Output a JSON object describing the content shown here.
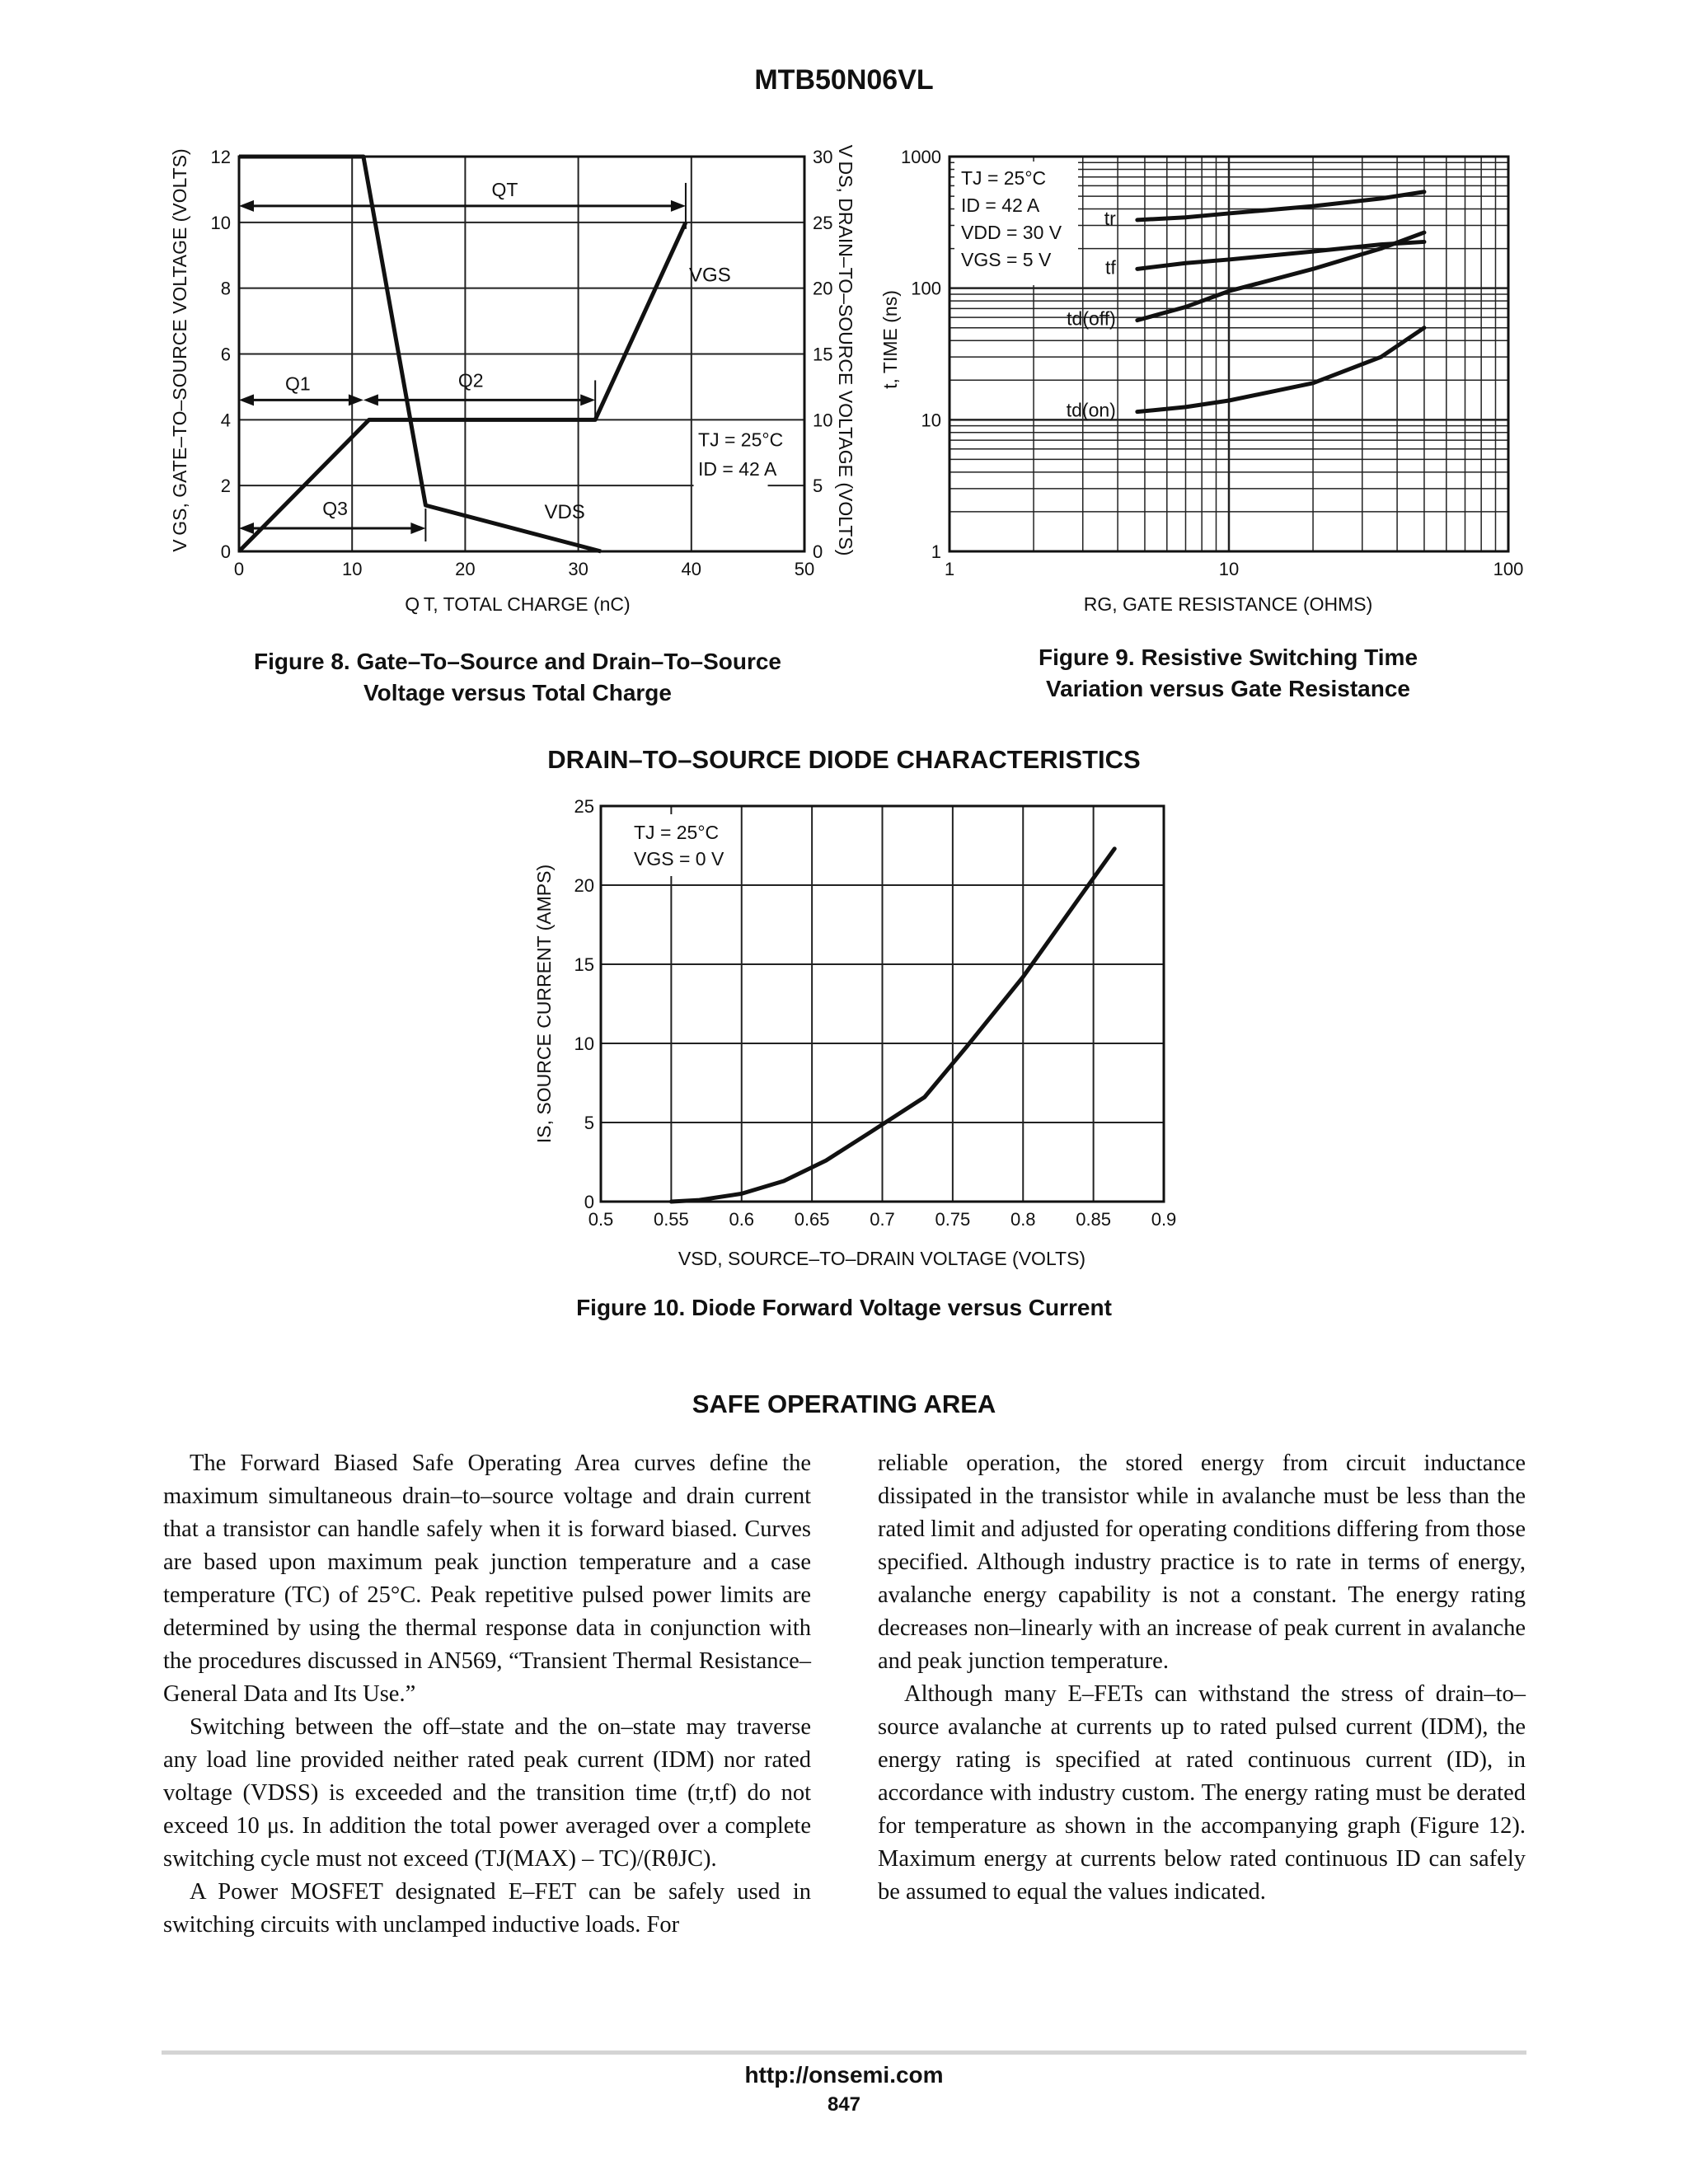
{
  "header": {
    "title": "MTB50N06VL"
  },
  "charts": {
    "fig8": {
      "y_left_label": "V GS, GATE–TO–SOURCE VOLTAGE (VOLTS)",
      "y_right_label": "V DS, DRAIN–TO–SOURCE VOLTAGE (VOLTS)",
      "x_label": "Q T, TOTAL CHARGE (nC)",
      "labels": {
        "qt": "QT",
        "q1": "Q1",
        "q2": "Q2",
        "q3": "Q3",
        "vgs": "VGS",
        "vds": "VDS",
        "tj": "TJ = 25°C",
        "id": "ID = 42 A"
      },
      "caption_line1": "Figure 8. Gate–To–Source and Drain–To–Source",
      "caption_line2": "Voltage versus Total Charge"
    },
    "fig9": {
      "y_label": "t, TIME (ns)",
      "x_label": "RG, GATE RESISTANCE (OHMS)",
      "conditions": [
        "TJ = 25°C",
        "ID = 42 A",
        "VDD = 30 V",
        "VGS = 5 V"
      ],
      "curve_labels": {
        "tr": "tr",
        "tf": "tf",
        "td_off": "td(off)",
        "td_on": "td(on)"
      },
      "caption_line1": "Figure 9. Resistive Switching Time",
      "caption_line2": "Variation versus Gate Resistance"
    },
    "fig10": {
      "section_title": "DRAIN–TO–SOURCE DIODE CHARACTERISTICS",
      "y_label": "IS, SOURCE CURRENT (AMPS)",
      "x_label": "VSD, SOURCE–TO–DRAIN VOLTAGE (VOLTS)",
      "conditions": [
        "TJ = 25°C",
        "VGS = 0 V"
      ],
      "caption": "Figure 10. Diode Forward Voltage versus Current"
    }
  },
  "chart_data": [
    {
      "type": "line",
      "title": "Figure 8. Gate–To–Source and Drain–To–Source Voltage versus Total Charge",
      "xlabel": "QT, TOTAL CHARGE (nC)",
      "ylabel": "VGS, GATE–TO–SOURCE VOLTAGE (VOLTS)",
      "ylabel_right": "VDS, DRAIN–TO–SOURCE VOLTAGE (VOLTS)",
      "xlim": [
        0,
        50
      ],
      "ylim": [
        0,
        12
      ],
      "ylim_right": [
        0,
        30
      ],
      "xticks": [
        0,
        10,
        20,
        30,
        40,
        50
      ],
      "yticks": [
        0,
        2,
        4,
        6,
        8,
        10,
        12
      ],
      "yticks_right": [
        0,
        5,
        10,
        15,
        20,
        25,
        30
      ],
      "grid": true,
      "series": [
        {
          "name": "VGS",
          "axis": "left",
          "x": [
            0,
            11.5,
            31.5,
            39.5
          ],
          "y": [
            0,
            4,
            4,
            10
          ]
        },
        {
          "name": "VDS",
          "axis": "right",
          "x": [
            0,
            11,
            16.5,
            32
          ],
          "y": [
            30,
            30,
            3.5,
            0
          ]
        }
      ],
      "annotations": [
        "QT",
        "Q1",
        "Q2",
        "Q3",
        "TJ = 25°C",
        "ID = 42 A"
      ]
    },
    {
      "type": "line",
      "title": "Figure 9. Resistive Switching Time Variation versus Gate Resistance",
      "xlabel": "RG, GATE RESISTANCE (OHMS)",
      "ylabel": "t, TIME (ns)",
      "xscale": "log",
      "yscale": "log",
      "xlim": [
        1,
        100
      ],
      "ylim": [
        1,
        1000
      ],
      "xticks": [
        1,
        10,
        100
      ],
      "yticks": [
        1,
        10,
        100,
        1000
      ],
      "grid": true,
      "series": [
        {
          "name": "tr",
          "x": [
            4.7,
            7,
            10,
            20,
            35,
            50
          ],
          "y": [
            330,
            345,
            370,
            420,
            480,
            540
          ]
        },
        {
          "name": "tf",
          "x": [
            4.7,
            7,
            10,
            20,
            35,
            50
          ],
          "y": [
            140,
            155,
            165,
            190,
            215,
            225
          ]
        },
        {
          "name": "td(off)",
          "x": [
            4.7,
            7,
            10,
            20,
            35,
            50
          ],
          "y": [
            57,
            72,
            95,
            140,
            200,
            265
          ]
        },
        {
          "name": "td(on)",
          "x": [
            4.7,
            7,
            10,
            20,
            35,
            50
          ],
          "y": [
            11.5,
            12.5,
            14,
            19,
            30,
            50
          ]
        }
      ],
      "annotations": [
        "TJ = 25°C",
        "ID = 42 A",
        "VDD = 30 V",
        "VGS = 5 V"
      ]
    },
    {
      "type": "line",
      "title": "Figure 10. Diode Forward Voltage versus Current",
      "xlabel": "VSD, SOURCE–TO–DRAIN VOLTAGE (VOLTS)",
      "ylabel": "IS, SOURCE CURRENT (AMPS)",
      "xlim": [
        0.5,
        0.9
      ],
      "ylim": [
        0,
        25
      ],
      "xticks": [
        0.5,
        0.55,
        0.6,
        0.65,
        0.7,
        0.75,
        0.8,
        0.85,
        0.9
      ],
      "yticks": [
        0,
        5,
        10,
        15,
        20,
        25
      ],
      "grid": true,
      "series": [
        {
          "name": "IS",
          "x": [
            0.55,
            0.57,
            0.6,
            0.63,
            0.66,
            0.69,
            0.73,
            0.76,
            0.8,
            0.84,
            0.865
          ],
          "y": [
            0,
            0.1,
            0.5,
            1.3,
            2.6,
            4.3,
            6.6,
            9.8,
            14.2,
            19.2,
            22.3
          ]
        }
      ],
      "annotations": [
        "TJ = 25°C",
        "VGS = 0 V"
      ]
    }
  ],
  "soa": {
    "title": "SAFE OPERATING AREA",
    "left_col": [
      "The Forward Biased Safe Operating Area curves define the maximum simultaneous drain–to–source voltage and drain current that a transistor can handle safely when it is forward biased. Curves are based upon maximum peak junction temperature and a case temperature (TC) of 25°C. Peak repetitive pulsed power limits are determined by using the thermal response data in conjunction with the procedures discussed in AN569, “Transient Thermal Resistance–General Data and Its Use.”",
      "Switching between the off–state and the on–state may traverse any load line provided neither rated peak current (IDM) nor rated voltage (VDSS) is exceeded and the transition time (tr,tf) do not exceed 10 μs. In addition the total power averaged over a complete switching cycle must not exceed (TJ(MAX) – TC)/(RθJC).",
      "A Power MOSFET designated E–FET can be safely used in switching circuits with unclamped inductive loads. For"
    ],
    "right_col": [
      "reliable operation, the stored energy from circuit inductance dissipated in the transistor while in avalanche must be less than the rated limit and adjusted for operating conditions differing from those specified. Although industry practice is to rate in terms of energy, avalanche energy capability is not a constant. The energy rating decreases non–linearly with an increase of peak current in avalanche and peak junction temperature.",
      "Although many E–FETs can withstand the stress of drain–to–source avalanche at currents up to rated pulsed current (IDM), the energy rating is specified at rated continuous current (ID), in accordance with industry custom. The energy rating must be derated for temperature as shown in the accompanying graph (Figure 12). Maximum energy at currents below rated continuous ID can safely be assumed to equal the values indicated."
    ]
  },
  "footer": {
    "url": "http://onsemi.com",
    "page": "847"
  }
}
